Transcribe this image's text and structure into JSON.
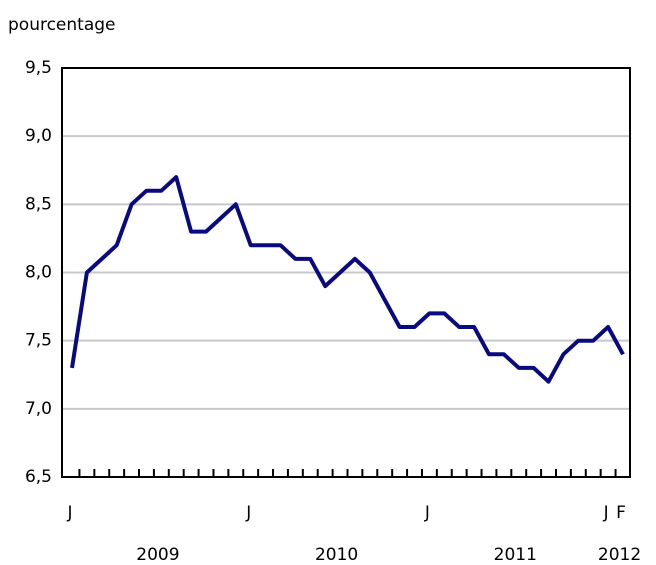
{
  "chart_data": {
    "type": "line",
    "y_label": "pourcentage",
    "categories": [
      "J",
      null,
      null,
      null,
      null,
      null,
      null,
      null,
      null,
      null,
      null,
      null,
      "J",
      null,
      null,
      null,
      null,
      null,
      null,
      null,
      null,
      null,
      null,
      null,
      "J",
      null,
      null,
      null,
      null,
      null,
      null,
      null,
      null,
      null,
      null,
      null,
      "J",
      "F"
    ],
    "years": [
      "2009",
      "2010",
      "2011",
      "2012"
    ],
    "series": [
      {
        "name": null,
        "color": "#0a0a80",
        "values": [
          7.3,
          8.0,
          8.1,
          8.2,
          8.5,
          8.6,
          8.6,
          8.7,
          8.3,
          8.3,
          8.4,
          8.5,
          8.2,
          8.2,
          8.2,
          8.1,
          8.1,
          7.9,
          8.0,
          8.1,
          8.0,
          7.8,
          7.6,
          7.6,
          7.7,
          7.7,
          7.6,
          7.6,
          7.4,
          7.4,
          7.3,
          7.3,
          7.2,
          7.4,
          7.5,
          7.5,
          7.6,
          7.4
        ]
      }
    ],
    "ylim": [
      6.5,
      9.5
    ],
    "yticks": [
      {
        "value": 6.5,
        "label": "6,5"
      },
      {
        "value": 7.0,
        "label": "7,0"
      },
      {
        "value": 7.5,
        "label": "7,5"
      },
      {
        "value": 8.0,
        "label": "8,0"
      },
      {
        "value": 8.5,
        "label": "8,5"
      },
      {
        "value": 9.0,
        "label": "9,0"
      },
      {
        "value": 9.5,
        "label": "9,5"
      }
    ],
    "grid": true
  }
}
